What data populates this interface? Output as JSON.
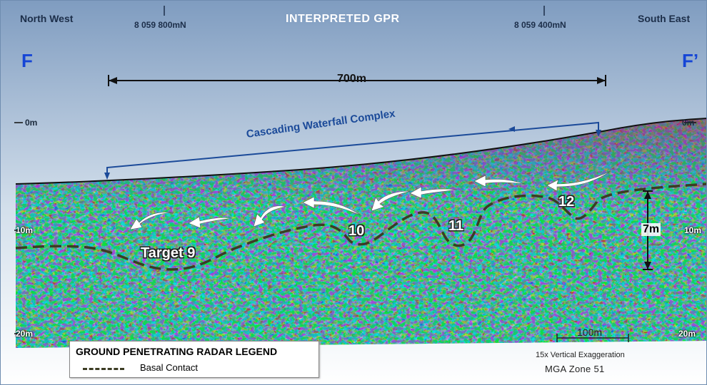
{
  "title": "INTERPRETED GPR",
  "corners": {
    "left": "North West",
    "right": "South East"
  },
  "northings": [
    "8 059 800mN",
    "8 059 400mN"
  ],
  "section": {
    "left": "F",
    "right": "F’"
  },
  "horizontal_span": "700m",
  "complex_label": "Cascading Waterfall Complex",
  "depth_labels_left": [
    "0m",
    "10m",
    "20m"
  ],
  "depth_labels_right": [
    "0m",
    "10m",
    "20m"
  ],
  "targets": [
    "Target 9",
    "10",
    "11",
    "12"
  ],
  "thickness_label": "7m",
  "scale_bar": "100m",
  "exaggeration": "15x Vertical Exaggeration",
  "zone": "MGA Zone 51",
  "legend": {
    "title": "GROUND PENETRATING RADAR LEGEND",
    "items": [
      {
        "label": "Basal Contact",
        "style": "dashed",
        "color": "#3c3c24"
      }
    ]
  },
  "colors": {
    "sky_top": "#7f9cc0",
    "sky_bottom": "#ffffff",
    "annotation_blue": "#1b4a99",
    "section_letter": "#1545d6"
  }
}
